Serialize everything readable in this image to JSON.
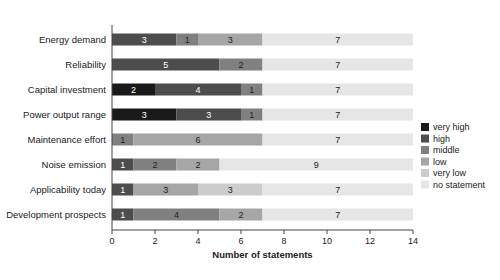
{
  "chart_data": {
    "type": "bar",
    "orientation": "horizontal",
    "stacked": true,
    "data_labels": true,
    "grid": false,
    "legend": "right",
    "x_label": "Number of statements",
    "categories": [
      "Energy demand",
      "Reliability",
      "Capital investment",
      "Power output range",
      "Maintenance effort",
      "Noise emission",
      "Applicability today",
      "Development prospects"
    ],
    "series": [
      {
        "name": "very high",
        "color": "#1a1a1a",
        "values": [
          0,
          0,
          2,
          3,
          0,
          0,
          0,
          0
        ]
      },
      {
        "name": "high",
        "color": "#4d4d4d",
        "values": [
          3,
          5,
          4,
          3,
          0,
          1,
          1,
          1
        ]
      },
      {
        "name": "middle",
        "color": "#808080",
        "values": [
          1,
          2,
          1,
          1,
          1,
          2,
          0,
          4
        ]
      },
      {
        "name": "low",
        "color": "#a6a6a6",
        "values": [
          3,
          0,
          0,
          0,
          6,
          2,
          3,
          2
        ]
      },
      {
        "name": "very low",
        "color": "#cccccc",
        "values": [
          0,
          0,
          0,
          0,
          0,
          0,
          3,
          0
        ]
      },
      {
        "name": "no statement",
        "color": "#e6e6e6",
        "values": [
          7,
          7,
          7,
          7,
          7,
          9,
          7,
          7
        ]
      }
    ],
    "xlim": [
      0,
      14
    ],
    "xticks": [
      0,
      2,
      4,
      6,
      8,
      10,
      12,
      14
    ]
  }
}
